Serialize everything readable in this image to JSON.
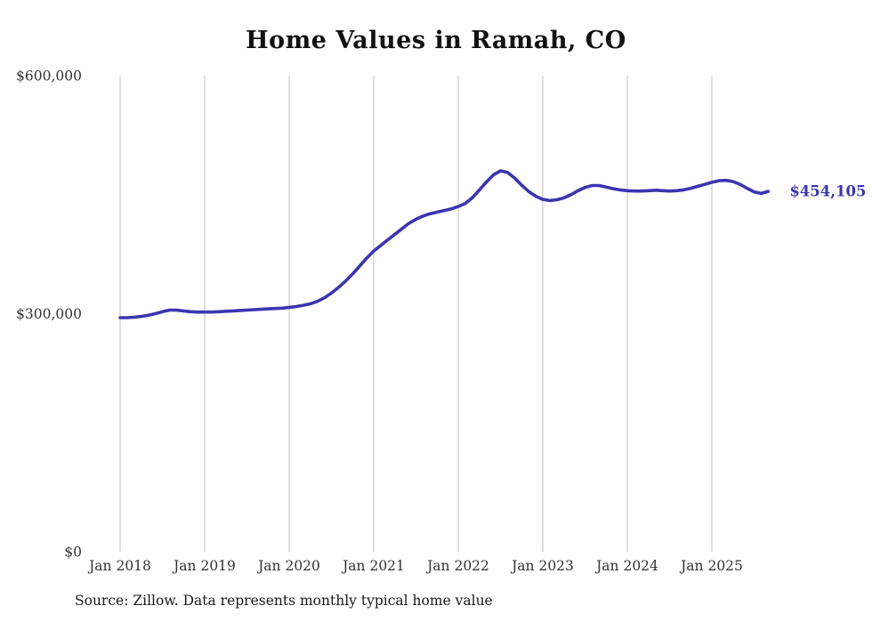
{
  "title": "Home Values in Ramah, CO",
  "source": "Source: Zillow. Data represents monthly typical home value",
  "colors": {
    "line": "#3b35b0",
    "end_label": "#3b35b0",
    "grid": "#cccccc",
    "tick_text": "#333333",
    "title_text": "#111111"
  },
  "chart_data": {
    "type": "line",
    "title": "Home Values in Ramah, CO",
    "xlabel": "",
    "ylabel": "",
    "ylim": [
      0,
      600000
    ],
    "grid": "vertical",
    "legend": "none",
    "end_label": "$454,105",
    "end_value": 454105,
    "yticks": [
      {
        "value": 0,
        "label": "$0"
      },
      {
        "value": 300000,
        "label": "$300,000"
      },
      {
        "value": 600000,
        "label": "$600,000"
      }
    ],
    "xticks": [
      {
        "month_index": 0,
        "label": "Jan 2018"
      },
      {
        "month_index": 12,
        "label": "Jan 2019"
      },
      {
        "month_index": 24,
        "label": "Jan 2020"
      },
      {
        "month_index": 36,
        "label": "Jan 2021"
      },
      {
        "month_index": 48,
        "label": "Jan 2022"
      },
      {
        "month_index": 60,
        "label": "Jan 2023"
      },
      {
        "month_index": 72,
        "label": "Jan 2024"
      },
      {
        "month_index": 84,
        "label": "Jan 2025"
      }
    ],
    "x": [
      "2018-01",
      "2018-02",
      "2018-03",
      "2018-04",
      "2018-05",
      "2018-06",
      "2018-07",
      "2018-08",
      "2018-09",
      "2018-10",
      "2018-11",
      "2018-12",
      "2019-01",
      "2019-02",
      "2019-03",
      "2019-04",
      "2019-05",
      "2019-06",
      "2019-07",
      "2019-08",
      "2019-09",
      "2019-10",
      "2019-11",
      "2019-12",
      "2020-01",
      "2020-02",
      "2020-03",
      "2020-04",
      "2020-05",
      "2020-06",
      "2020-07",
      "2020-08",
      "2020-09",
      "2020-10",
      "2020-11",
      "2020-12",
      "2021-01",
      "2021-02",
      "2021-03",
      "2021-04",
      "2021-05",
      "2021-06",
      "2021-07",
      "2021-08",
      "2021-09",
      "2021-10",
      "2021-11",
      "2021-12",
      "2022-01",
      "2022-02",
      "2022-03",
      "2022-04",
      "2022-05",
      "2022-06",
      "2022-07",
      "2022-08",
      "2022-09",
      "2022-10",
      "2022-11",
      "2022-12",
      "2023-01",
      "2023-02",
      "2023-03",
      "2023-04",
      "2023-05",
      "2023-06",
      "2023-07",
      "2023-08",
      "2023-09",
      "2023-10",
      "2023-11",
      "2023-12",
      "2024-01",
      "2024-02",
      "2024-03",
      "2024-04",
      "2024-05",
      "2024-06",
      "2024-07",
      "2024-08",
      "2024-09",
      "2024-10",
      "2024-11",
      "2024-12",
      "2025-01",
      "2025-02",
      "2025-03",
      "2025-04",
      "2025-05",
      "2025-06",
      "2025-07",
      "2025-08",
      "2025-09"
    ],
    "values": [
      295000,
      295000,
      295500,
      296500,
      298000,
      300000,
      302500,
      304500,
      304500,
      303500,
      302500,
      302000,
      302000,
      302000,
      302500,
      303000,
      303500,
      304000,
      304500,
      305000,
      305500,
      306000,
      306500,
      307000,
      308000,
      309000,
      310500,
      312500,
      315500,
      320000,
      326000,
      333000,
      341000,
      350000,
      360000,
      370000,
      379000,
      386000,
      393000,
      400000,
      407000,
      414000,
      419000,
      423000,
      426000,
      428000,
      430000,
      432000,
      435000,
      439000,
      446000,
      456000,
      466000,
      475000,
      480000,
      478000,
      471000,
      462000,
      454000,
      448000,
      444000,
      442500,
      443500,
      446000,
      450000,
      455000,
      459000,
      461500,
      461500,
      459500,
      457500,
      456000,
      455000,
      454500,
      454500,
      455000,
      455500,
      455000,
      454500,
      455000,
      456000,
      458000,
      460500,
      463000,
      465500,
      467500,
      468000,
      466500,
      463000,
      458000,
      453500,
      451500,
      454105
    ]
  }
}
